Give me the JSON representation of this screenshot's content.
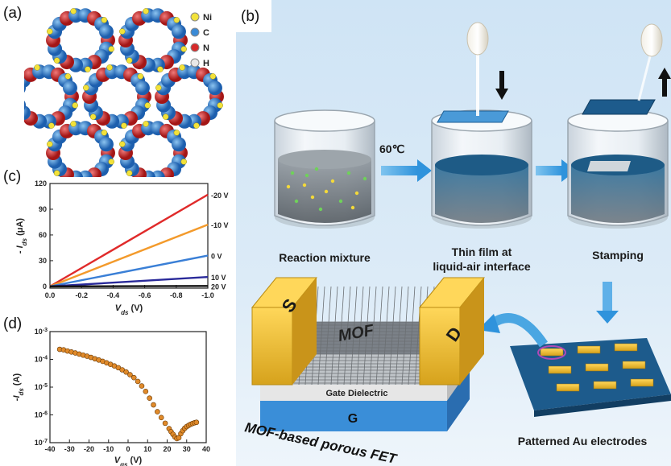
{
  "panels": {
    "a": {
      "label": "(a)",
      "legend": [
        {
          "element": "Ni",
          "color": "#f2e23a"
        },
        {
          "element": "C",
          "color": "#3a8ad6"
        },
        {
          "element": "N",
          "color": "#d62a2a"
        },
        {
          "element": "H",
          "color": "#e8e8e8"
        }
      ]
    },
    "b": {
      "label": "(b)",
      "temperature": "60℃",
      "captions": {
        "reaction": "Reaction mixture",
        "film_line1": "Thin film at",
        "film_line2": "liquid-air interface",
        "stamping": "Stamping",
        "electrodes": "Patterned Au electrodes"
      },
      "device": {
        "source": "S",
        "drain": "D",
        "mof": "MOF",
        "gate_dielectric": "Gate Dielectric",
        "gate": "G",
        "title": "MOF-based porous FET"
      }
    },
    "c": {
      "label": "(c)"
    },
    "d": {
      "label": "(d)"
    }
  },
  "chart_data": [
    {
      "type": "line",
      "panel": "c",
      "xlabel": "V_ds (V)",
      "ylabel": "-I_ds (μA)",
      "xlim": [
        0.0,
        -1.0
      ],
      "ylim": [
        -2,
        120
      ],
      "xticks": [
        "0.0",
        "-0.2",
        "-0.4",
        "-0.6",
        "-0.8",
        "-1.0"
      ],
      "yticks": [
        "0",
        "30",
        "60",
        "90",
        "120"
      ],
      "grid": false,
      "series": [
        {
          "name": "-20 V",
          "color": "#e02a2a",
          "x": [
            0,
            -1.0
          ],
          "y": [
            0,
            107
          ]
        },
        {
          "name": "-10 V",
          "color": "#f39a2b",
          "x": [
            0,
            -1.0
          ],
          "y": [
            0,
            72
          ]
        },
        {
          "name": "0 V",
          "color": "#3a7fd6",
          "x": [
            0,
            -1.0
          ],
          "y": [
            0,
            36
          ]
        },
        {
          "name": "10 V",
          "color": "#2a2a9a",
          "x": [
            0,
            -1.0
          ],
          "y": [
            0,
            11
          ]
        },
        {
          "name": "20 V",
          "color": "#111111",
          "x": [
            0,
            -1.0
          ],
          "y": [
            0,
            0.5
          ]
        }
      ]
    },
    {
      "type": "scatter",
      "panel": "d",
      "xlabel": "V_gs (V)",
      "ylabel": "-I_ds (A)",
      "yscale": "log",
      "xlim": [
        -40,
        40
      ],
      "ylim": [
        1e-07,
        0.001
      ],
      "xticks": [
        "-40",
        "-30",
        "-20",
        "-10",
        "0",
        "10",
        "20",
        "30",
        "40"
      ],
      "yticks": [
        "10-7",
        "10-6",
        "10-5",
        "10-4",
        "10-3"
      ],
      "marker_color": "#e08a2a",
      "x": [
        -35,
        -33,
        -31,
        -29,
        -27,
        -25,
        -23,
        -21,
        -19,
        -17,
        -15,
        -13,
        -11,
        -9,
        -7,
        -5,
        -3,
        -1,
        1,
        3,
        5,
        7,
        9,
        11,
        13,
        15,
        17,
        19,
        21,
        22,
        23,
        24,
        25,
        26,
        27,
        28,
        29,
        30,
        31,
        32,
        33,
        34,
        35
      ],
      "y": [
        0.00023,
        0.00022,
        0.0002,
        0.000185,
        0.00017,
        0.000155,
        0.000142,
        0.00013,
        0.000118,
        0.000105,
        9.5e-05,
        8.5e-05,
        7.5e-05,
        6.6e-05,
        5.8e-05,
        5e-05,
        4.2e-05,
        3.5e-05,
        2.8e-05,
        2.2e-05,
        1.6e-05,
        1.1e-05,
        7e-06,
        4e-06,
        2.3e-06,
        1.3e-06,
        8e-07,
        5e-07,
        3.2e-07,
        2.5e-07,
        2e-07,
        1.6e-07,
        1.4e-07,
        1.5e-07,
        2.1e-07,
        2.7e-07,
        3.3e-07,
        3.8e-07,
        4.2e-07,
        4.6e-07,
        4.9e-07,
        5.2e-07,
        5.4e-07
      ]
    }
  ]
}
